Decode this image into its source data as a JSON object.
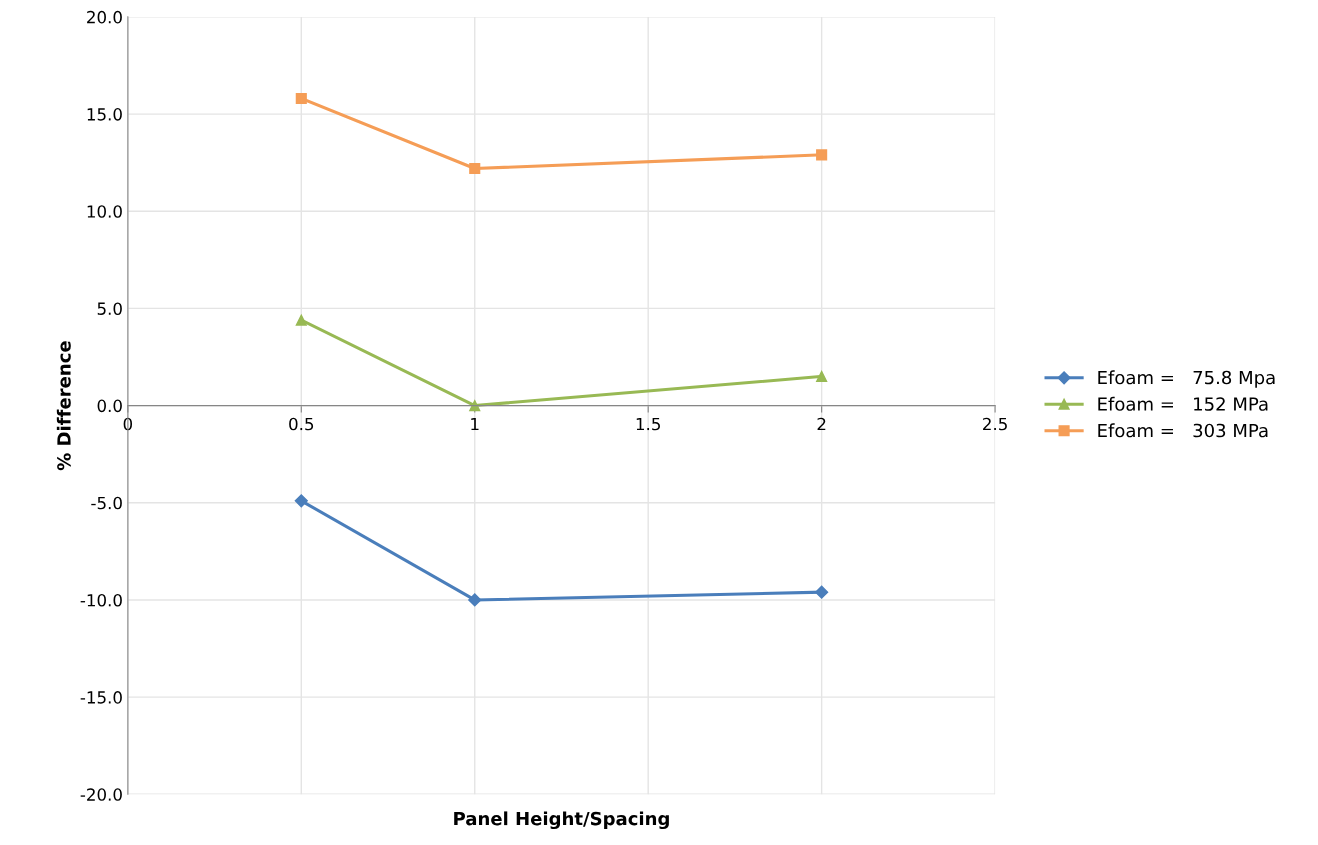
{
  "chart_data": {
    "type": "line",
    "xlabel": "Panel Height/Spacing",
    "ylabel": "% Difference",
    "x": [
      0.5,
      1,
      2
    ],
    "series": [
      {
        "name": "Efoam =   75.8 Mpa",
        "color": "#4a7ebb",
        "marker": "diamond",
        "values": [
          -4.9,
          -10.0,
          -9.6
        ]
      },
      {
        "name": "Efoam =   152 MPa",
        "color": "#98b954",
        "marker": "triangle",
        "values": [
          4.4,
          0.0,
          1.5
        ]
      },
      {
        "name": "Efoam =   303 MPa",
        "color": "#f59d56",
        "marker": "square",
        "values": [
          15.8,
          12.2,
          12.9
        ]
      }
    ],
    "xlim": [
      0,
      2.5
    ],
    "xticks": [
      0,
      0.5,
      1,
      1.5,
      2,
      2.5
    ],
    "ylim": [
      -20,
      20
    ],
    "yticks": [
      {
        "value": -20,
        "label": "-20.0"
      },
      {
        "value": -15,
        "label": "-15.0"
      },
      {
        "value": -10,
        "label": "-10.0"
      },
      {
        "value": -5,
        "label": "-5.0"
      },
      {
        "value": 0,
        "label": "0.0"
      },
      {
        "value": 5,
        "label": "5.0"
      },
      {
        "value": 10,
        "label": "10.0"
      },
      {
        "value": 15,
        "label": "15.0"
      },
      {
        "value": 20,
        "label": "20.0"
      }
    ],
    "grid": true,
    "legend": "right",
    "line_style": "solid"
  }
}
